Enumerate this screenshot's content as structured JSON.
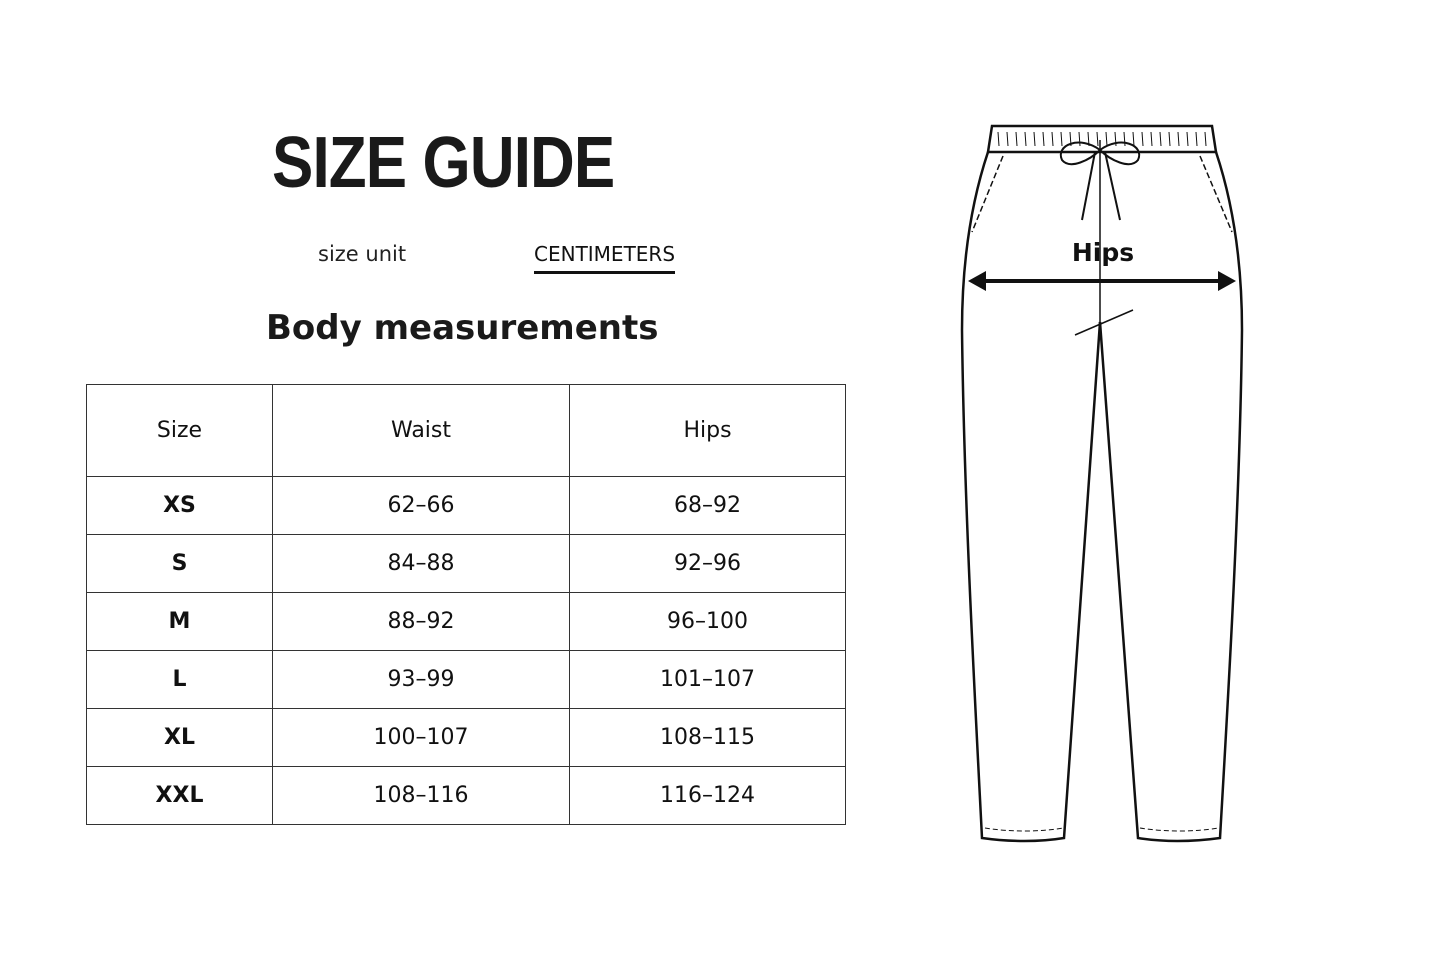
{
  "title": "SIZE GUIDE",
  "size_unit": {
    "label": "size unit",
    "value": "CENTIMETERS"
  },
  "subtitle": "Body measurements",
  "table": {
    "headers": [
      "Size",
      "Waist",
      "Hips"
    ],
    "rows": [
      [
        "XS",
        "62–66",
        "68–92"
      ],
      [
        "S",
        "84–88",
        "92–96"
      ],
      [
        "M",
        "88–92",
        "96–100"
      ],
      [
        "L",
        "93–99",
        "101–107"
      ],
      [
        "XL",
        "100–107",
        "108–115"
      ],
      [
        "XXL",
        "108–116",
        "116–124"
      ]
    ]
  },
  "illustration": {
    "label": "Hips"
  }
}
